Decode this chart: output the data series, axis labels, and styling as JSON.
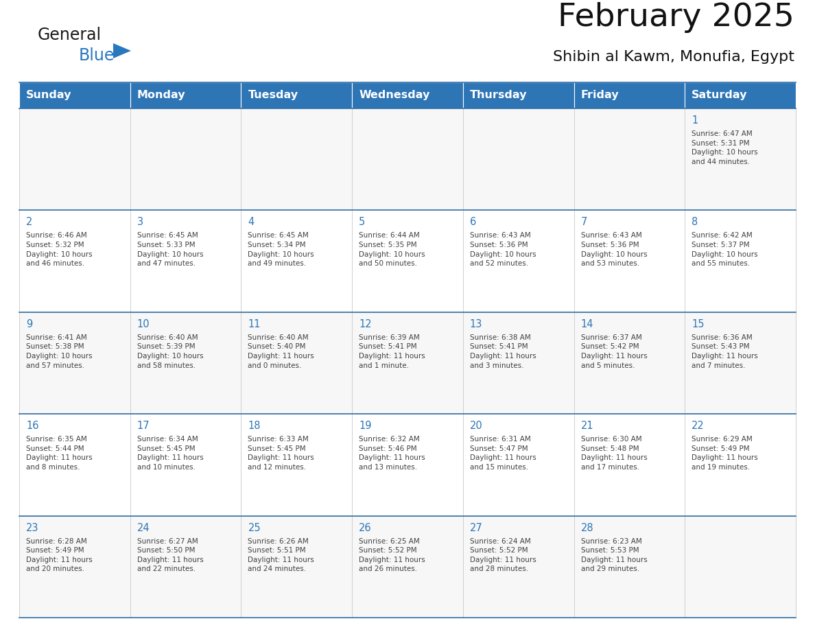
{
  "title": "February 2025",
  "subtitle": "Shibin al Kawm, Monufia, Egypt",
  "header_color": "#2E75B6",
  "header_text_color": "#FFFFFF",
  "days_of_week": [
    "Sunday",
    "Monday",
    "Tuesday",
    "Wednesday",
    "Thursday",
    "Friday",
    "Saturday"
  ],
  "cell_bg_color": "#FFFFFF",
  "cell_text_color": "#404040",
  "day_num_color": "#2E75B6",
  "line_color": "#2E6DA4",
  "alt_row_color": "#F2F2F2",
  "calendar": [
    [
      {
        "day": null,
        "info": ""
      },
      {
        "day": null,
        "info": ""
      },
      {
        "day": null,
        "info": ""
      },
      {
        "day": null,
        "info": ""
      },
      {
        "day": null,
        "info": ""
      },
      {
        "day": null,
        "info": ""
      },
      {
        "day": 1,
        "info": "Sunrise: 6:47 AM\nSunset: 5:31 PM\nDaylight: 10 hours\nand 44 minutes."
      }
    ],
    [
      {
        "day": 2,
        "info": "Sunrise: 6:46 AM\nSunset: 5:32 PM\nDaylight: 10 hours\nand 46 minutes."
      },
      {
        "day": 3,
        "info": "Sunrise: 6:45 AM\nSunset: 5:33 PM\nDaylight: 10 hours\nand 47 minutes."
      },
      {
        "day": 4,
        "info": "Sunrise: 6:45 AM\nSunset: 5:34 PM\nDaylight: 10 hours\nand 49 minutes."
      },
      {
        "day": 5,
        "info": "Sunrise: 6:44 AM\nSunset: 5:35 PM\nDaylight: 10 hours\nand 50 minutes."
      },
      {
        "day": 6,
        "info": "Sunrise: 6:43 AM\nSunset: 5:36 PM\nDaylight: 10 hours\nand 52 minutes."
      },
      {
        "day": 7,
        "info": "Sunrise: 6:43 AM\nSunset: 5:36 PM\nDaylight: 10 hours\nand 53 minutes."
      },
      {
        "day": 8,
        "info": "Sunrise: 6:42 AM\nSunset: 5:37 PM\nDaylight: 10 hours\nand 55 minutes."
      }
    ],
    [
      {
        "day": 9,
        "info": "Sunrise: 6:41 AM\nSunset: 5:38 PM\nDaylight: 10 hours\nand 57 minutes."
      },
      {
        "day": 10,
        "info": "Sunrise: 6:40 AM\nSunset: 5:39 PM\nDaylight: 10 hours\nand 58 minutes."
      },
      {
        "day": 11,
        "info": "Sunrise: 6:40 AM\nSunset: 5:40 PM\nDaylight: 11 hours\nand 0 minutes."
      },
      {
        "day": 12,
        "info": "Sunrise: 6:39 AM\nSunset: 5:41 PM\nDaylight: 11 hours\nand 1 minute."
      },
      {
        "day": 13,
        "info": "Sunrise: 6:38 AM\nSunset: 5:41 PM\nDaylight: 11 hours\nand 3 minutes."
      },
      {
        "day": 14,
        "info": "Sunrise: 6:37 AM\nSunset: 5:42 PM\nDaylight: 11 hours\nand 5 minutes."
      },
      {
        "day": 15,
        "info": "Sunrise: 6:36 AM\nSunset: 5:43 PM\nDaylight: 11 hours\nand 7 minutes."
      }
    ],
    [
      {
        "day": 16,
        "info": "Sunrise: 6:35 AM\nSunset: 5:44 PM\nDaylight: 11 hours\nand 8 minutes."
      },
      {
        "day": 17,
        "info": "Sunrise: 6:34 AM\nSunset: 5:45 PM\nDaylight: 11 hours\nand 10 minutes."
      },
      {
        "day": 18,
        "info": "Sunrise: 6:33 AM\nSunset: 5:45 PM\nDaylight: 11 hours\nand 12 minutes."
      },
      {
        "day": 19,
        "info": "Sunrise: 6:32 AM\nSunset: 5:46 PM\nDaylight: 11 hours\nand 13 minutes."
      },
      {
        "day": 20,
        "info": "Sunrise: 6:31 AM\nSunset: 5:47 PM\nDaylight: 11 hours\nand 15 minutes."
      },
      {
        "day": 21,
        "info": "Sunrise: 6:30 AM\nSunset: 5:48 PM\nDaylight: 11 hours\nand 17 minutes."
      },
      {
        "day": 22,
        "info": "Sunrise: 6:29 AM\nSunset: 5:49 PM\nDaylight: 11 hours\nand 19 minutes."
      }
    ],
    [
      {
        "day": 23,
        "info": "Sunrise: 6:28 AM\nSunset: 5:49 PM\nDaylight: 11 hours\nand 20 minutes."
      },
      {
        "day": 24,
        "info": "Sunrise: 6:27 AM\nSunset: 5:50 PM\nDaylight: 11 hours\nand 22 minutes."
      },
      {
        "day": 25,
        "info": "Sunrise: 6:26 AM\nSunset: 5:51 PM\nDaylight: 11 hours\nand 24 minutes."
      },
      {
        "day": 26,
        "info": "Sunrise: 6:25 AM\nSunset: 5:52 PM\nDaylight: 11 hours\nand 26 minutes."
      },
      {
        "day": 27,
        "info": "Sunrise: 6:24 AM\nSunset: 5:52 PM\nDaylight: 11 hours\nand 28 minutes."
      },
      {
        "day": 28,
        "info": "Sunrise: 6:23 AM\nSunset: 5:53 PM\nDaylight: 11 hours\nand 29 minutes."
      },
      {
        "day": null,
        "info": ""
      }
    ]
  ],
  "logo_general_color": "#1a1a1a",
  "logo_blue_color": "#2878BE",
  "fig_width": 11.88,
  "fig_height": 9.18,
  "bg_color": "#FFFFFF"
}
